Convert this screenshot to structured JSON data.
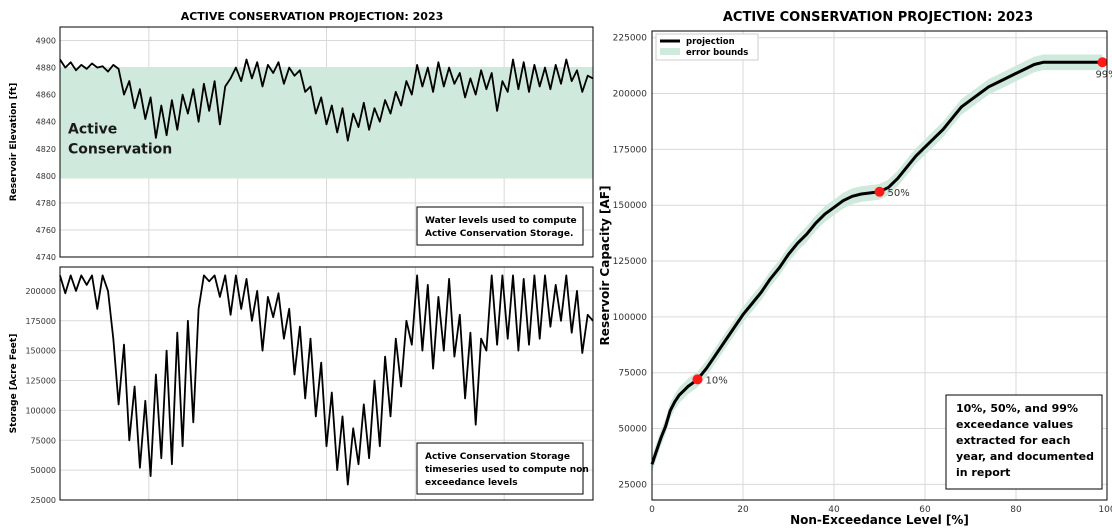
{
  "left_title": "ACTIVE CONSERVATION PROJECTION: 2023",
  "right_title": "ACTIVE CONSERVATION PROJECTION: 2023",
  "colors": {
    "band_fill": "#cfe9dc",
    "band_stroke": "#a6d5bd",
    "line": "#000000",
    "marker": "#ff1a1a",
    "grid": "#d9d9d9"
  },
  "chart_data": [
    {
      "id": "elevation",
      "type": "line",
      "title": "ACTIVE CONSERVATION PROJECTION: 2023",
      "ylabel": "Reservoir Elevation [ft]",
      "xlabel": "",
      "ylim": [
        4740,
        4910
      ],
      "yticks": [
        4740,
        4760,
        4780,
        4800,
        4820,
        4840,
        4860,
        4880,
        4900
      ],
      "grid": true,
      "band": {
        "label": "Active\nConservation",
        "from": 4798,
        "to": 4880
      },
      "annotation": "Water levels used to compute\nActive Conservation Storage.",
      "series": [
        {
          "x": [
            0,
            3,
            6,
            9,
            12,
            15,
            18,
            21,
            24,
            27,
            30,
            33,
            36,
            39,
            42,
            45,
            48,
            51,
            54,
            57,
            60,
            63,
            66,
            69,
            72,
            75,
            78,
            81,
            84,
            87,
            90,
            93,
            96,
            99,
            102,
            105,
            108,
            111,
            114,
            117,
            120,
            123,
            126,
            129,
            132,
            135,
            138,
            141,
            144,
            147,
            150,
            153,
            156,
            159,
            162,
            165,
            168,
            171,
            174,
            177,
            180,
            183,
            186,
            189,
            192,
            195,
            198,
            201,
            204,
            207,
            210,
            213,
            216,
            219,
            222,
            225,
            228,
            231,
            234,
            237,
            240,
            243,
            246,
            249,
            252,
            255,
            258,
            261,
            264,
            267,
            270,
            273,
            276,
            279,
            282,
            285,
            288,
            291,
            294,
            297,
            300
          ],
          "values": [
            4886,
            4880,
            4884,
            4878,
            4882,
            4879,
            4883,
            4880,
            4881,
            4877,
            4882,
            4879,
            4860,
            4870,
            4850,
            4864,
            4842,
            4858,
            4828,
            4852,
            4830,
            4856,
            4834,
            4860,
            4846,
            4864,
            4840,
            4868,
            4848,
            4870,
            4838,
            4866,
            4872,
            4880,
            4870,
            4886,
            4872,
            4884,
            4866,
            4882,
            4876,
            4884,
            4868,
            4880,
            4874,
            4878,
            4862,
            4866,
            4846,
            4858,
            4838,
            4852,
            4832,
            4850,
            4826,
            4846,
            4836,
            4854,
            4834,
            4850,
            4840,
            4856,
            4846,
            4862,
            4852,
            4870,
            4860,
            4882,
            4866,
            4880,
            4862,
            4884,
            4866,
            4880,
            4868,
            4876,
            4858,
            4872,
            4860,
            4878,
            4864,
            4876,
            4848,
            4870,
            4862,
            4886,
            4864,
            4884,
            4862,
            4882,
            4866,
            4880,
            4864,
            4882,
            4868,
            4886,
            4870,
            4878,
            4862,
            4874,
            4872
          ]
        }
      ]
    },
    {
      "id": "storage",
      "type": "line",
      "title": "",
      "ylabel": "Storage [Acre Feet]",
      "xlabel": "",
      "ylim": [
        25000,
        220000
      ],
      "yticks": [
        25000,
        50000,
        75000,
        100000,
        125000,
        150000,
        175000,
        200000
      ],
      "grid": true,
      "annotation": "Active Conservation Storage\ntimeseries used to compute non\nexceedance levels",
      "series": [
        {
          "x": [
            0,
            3,
            6,
            9,
            12,
            15,
            18,
            21,
            24,
            27,
            30,
            33,
            36,
            39,
            42,
            45,
            48,
            51,
            54,
            57,
            60,
            63,
            66,
            69,
            72,
            75,
            78,
            81,
            84,
            87,
            90,
            93,
            96,
            99,
            102,
            105,
            108,
            111,
            114,
            117,
            120,
            123,
            126,
            129,
            132,
            135,
            138,
            141,
            144,
            147,
            150,
            153,
            156,
            159,
            162,
            165,
            168,
            171,
            174,
            177,
            180,
            183,
            186,
            189,
            192,
            195,
            198,
            201,
            204,
            207,
            210,
            213,
            216,
            219,
            222,
            225,
            228,
            231,
            234,
            237,
            240,
            243,
            246,
            249,
            252,
            255,
            258,
            261,
            264,
            267,
            270,
            273,
            276,
            279,
            282,
            285,
            288,
            291,
            294,
            297,
            300
          ],
          "values": [
            213000,
            198000,
            213000,
            200000,
            213000,
            205000,
            213000,
            185000,
            213000,
            200000,
            160000,
            105000,
            155000,
            75000,
            120000,
            52000,
            108000,
            45000,
            130000,
            60000,
            150000,
            55000,
            165000,
            70000,
            175000,
            90000,
            185000,
            213000,
            208000,
            213000,
            195000,
            213000,
            180000,
            213000,
            185000,
            210000,
            175000,
            200000,
            150000,
            195000,
            178000,
            198000,
            160000,
            185000,
            130000,
            170000,
            110000,
            160000,
            95000,
            140000,
            70000,
            115000,
            50000,
            95000,
            38000,
            85000,
            55000,
            105000,
            60000,
            125000,
            70000,
            145000,
            95000,
            160000,
            120000,
            175000,
            155000,
            213000,
            150000,
            205000,
            135000,
            195000,
            150000,
            210000,
            145000,
            180000,
            110000,
            165000,
            88000,
            160000,
            150000,
            213000,
            155000,
            213000,
            160000,
            213000,
            150000,
            210000,
            155000,
            213000,
            160000,
            213000,
            170000,
            205000,
            175000,
            213000,
            165000,
            200000,
            148000,
            180000,
            175000
          ]
        }
      ]
    },
    {
      "id": "exceedance",
      "type": "line",
      "title": "ACTIVE CONSERVATION PROJECTION: 2023",
      "xlabel": "Non-Exceedance Level [%]",
      "ylabel": "Reservoir Capacity [AF]",
      "xlim": [
        0,
        100
      ],
      "ylim": [
        18000,
        228000
      ],
      "xticks": [
        0,
        20,
        40,
        60,
        80,
        100
      ],
      "yticks": [
        25000,
        50000,
        75000,
        100000,
        125000,
        150000,
        175000,
        200000,
        225000
      ],
      "grid": true,
      "legend_position": "top-left",
      "legend": [
        "projection",
        "error bounds"
      ],
      "series": [
        {
          "name": "projection",
          "x": [
            0,
            1,
            2,
            3,
            4,
            5,
            6,
            7,
            8,
            9,
            10,
            12,
            14,
            16,
            18,
            20,
            22,
            24,
            26,
            28,
            30,
            32,
            34,
            36,
            38,
            40,
            42,
            44,
            46,
            48,
            50,
            52,
            54,
            56,
            58,
            60,
            62,
            64,
            66,
            68,
            70,
            72,
            74,
            76,
            78,
            80,
            82,
            84,
            86,
            88,
            90,
            92,
            94,
            96,
            98,
            99
          ],
          "values": [
            34000,
            40000,
            46000,
            51000,
            58000,
            62000,
            65000,
            67000,
            69000,
            70500,
            72000,
            77000,
            83000,
            89000,
            95000,
            101000,
            106000,
            111000,
            117000,
            122000,
            128000,
            133000,
            137000,
            142000,
            146000,
            149000,
            152000,
            154000,
            155000,
            155500,
            156000,
            158000,
            162000,
            167000,
            172000,
            176000,
            180000,
            184000,
            189000,
            194000,
            197000,
            200000,
            203000,
            205000,
            207000,
            209000,
            211000,
            213000,
            214000,
            214000,
            214000,
            214000,
            214000,
            214000,
            214000,
            214000
          ]
        }
      ],
      "error_band": 3500,
      "markers": [
        {
          "x": 10,
          "y": 72000,
          "label": "10%"
        },
        {
          "x": 50,
          "y": 156000,
          "label": "50%"
        },
        {
          "x": 99,
          "y": 214000,
          "label": "99%"
        }
      ],
      "annotation": "10%, 50%, and 99%\nexceedance values\nextracted for each\nyear, and documented\nin report"
    }
  ]
}
